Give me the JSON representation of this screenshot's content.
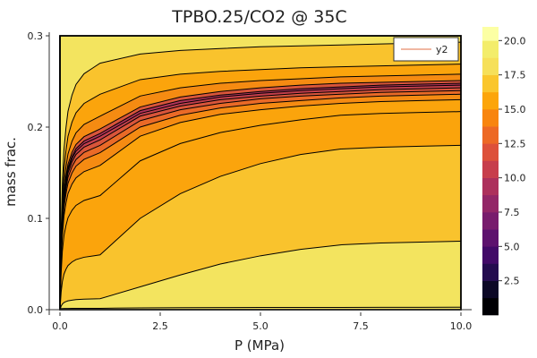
{
  "chart_data": {
    "type": "contour",
    "title": "TPBO.25/CO2 @ 35C",
    "xlabel": "P (MPa)",
    "ylabel": "mass frac.",
    "xlim": [
      0,
      10
    ],
    "ylim": [
      0,
      0.3
    ],
    "x_ticks": [
      {
        "value": 0,
        "label": "0.0"
      },
      {
        "value": 2.5,
        "label": "2.5"
      },
      {
        "value": 5,
        "label": "5.0"
      },
      {
        "value": 7.5,
        "label": "7.5"
      },
      {
        "value": 10,
        "label": "10.0"
      }
    ],
    "y_ticks": [
      {
        "value": 0,
        "label": "0.0"
      },
      {
        "value": 0.1,
        "label": "0.1"
      },
      {
        "value": 0.2,
        "label": "0.2"
      },
      {
        "value": 0.3,
        "label": "0.3"
      }
    ],
    "grid": true,
    "legend": {
      "placement": "top-right",
      "entries": [
        {
          "name": "y2",
          "color": "#e26f46"
        }
      ]
    },
    "colorbar": {
      "range": [
        0,
        21
      ],
      "levels": [
        0,
        1.25,
        2.5,
        3.75,
        5,
        6.25,
        7.5,
        8.75,
        10,
        11.25,
        12.5,
        13.75,
        15,
        16.25,
        17.5,
        18.75,
        20,
        21
      ],
      "ticks": [
        {
          "value": 2.5,
          "label": "2.5"
        },
        {
          "value": 5,
          "label": "5.0"
        },
        {
          "value": 7.5,
          "label": "7.5"
        },
        {
          "value": 10,
          "label": "10.0"
        },
        {
          "value": 12.5,
          "label": "12.5"
        },
        {
          "value": 15,
          "label": "15.0"
        },
        {
          "value": 17.5,
          "label": "17.5"
        },
        {
          "value": 20,
          "label": "20.0"
        }
      ],
      "colors": [
        "#000004",
        "#0c0826",
        "#240c4f",
        "#420a68",
        "#5d126e",
        "#781c6d",
        "#932667",
        "#ad305c",
        "#c73e4c",
        "#dd513a",
        "#ed6925",
        "#f8850f",
        "#fca50a",
        "#fac62d",
        "#f6e05a",
        "#f3ed6b",
        "#fcffa4"
      ]
    },
    "contour_x": [
      0,
      1,
      2,
      3,
      4,
      5,
      6,
      7,
      8,
      9,
      10
    ],
    "contour_curves": [
      {
        "y": [
          0.001,
          0.0015,
          0.002,
          0.0022,
          0.0023,
          0.0024,
          0.0025,
          0.0025,
          0.0026,
          0.0026,
          0.0027
        ]
      },
      {
        "y": [
          0,
          0.012,
          0.025,
          0.038,
          0.05,
          0.059,
          0.066,
          0.071,
          0.073,
          0.074,
          0.075
        ]
      },
      {
        "y": [
          0,
          0.06,
          0.1,
          0.127,
          0.146,
          0.16,
          0.17,
          0.176,
          0.178,
          0.179,
          0.18
        ]
      },
      {
        "y": [
          0,
          0.125,
          0.163,
          0.182,
          0.194,
          0.202,
          0.208,
          0.213,
          0.215,
          0.216,
          0.217
        ]
      },
      {
        "y": [
          0,
          0.158,
          0.19,
          0.205,
          0.214,
          0.219,
          0.223,
          0.226,
          0.228,
          0.229,
          0.23
        ]
      },
      {
        "y": [
          0,
          0.172,
          0.2,
          0.213,
          0.221,
          0.226,
          0.229,
          0.232,
          0.234,
          0.235,
          0.236
        ]
      },
      {
        "y": [
          0,
          0.18,
          0.207,
          0.219,
          0.226,
          0.231,
          0.234,
          0.236,
          0.238,
          0.239,
          0.24
        ]
      },
      {
        "y": [
          0,
          0.186,
          0.212,
          0.223,
          0.23,
          0.234,
          0.237,
          0.239,
          0.241,
          0.242,
          0.243
        ]
      },
      {
        "y": [
          0,
          0.19,
          0.215,
          0.226,
          0.233,
          0.237,
          0.24,
          0.242,
          0.244,
          0.245,
          0.246
        ]
      },
      {
        "y": [
          0,
          0.193,
          0.218,
          0.229,
          0.235,
          0.239,
          0.242,
          0.244,
          0.246,
          0.247,
          0.248
        ]
      },
      {
        "y": [
          0,
          0.198,
          0.222,
          0.233,
          0.239,
          0.243,
          0.246,
          0.248,
          0.249,
          0.25,
          0.251
        ]
      },
      {
        "y": [
          0,
          0.212,
          0.234,
          0.243,
          0.248,
          0.251,
          0.253,
          0.255,
          0.256,
          0.257,
          0.258
        ]
      },
      {
        "y": [
          0,
          0.236,
          0.252,
          0.258,
          0.261,
          0.263,
          0.265,
          0.266,
          0.267,
          0.268,
          0.269
        ]
      },
      {
        "y": [
          0,
          0.27,
          0.28,
          0.284,
          0.286,
          0.288,
          0.289,
          0.29,
          0.291,
          0.292,
          0.293
        ]
      }
    ],
    "band_colors": [
      "#f3e45f",
      "#f3e45f",
      "#f9c32d",
      "#fba40c",
      "#fba40c",
      "#f58b12",
      "#ea6a27",
      "#d9553a",
      "#c43f4c",
      "#b1335a",
      "#d9553a",
      "#f58b12",
      "#fba40c",
      "#f9c32d",
      "#f3e45f"
    ],
    "steep_edge": {
      "p": [
        0,
        0.03,
        0.06,
        0.1,
        0.15,
        0.2,
        0.3,
        0.4,
        0.6,
        0.8,
        1.0
      ],
      "y": [
        0,
        0.06,
        0.1,
        0.13,
        0.15,
        0.165,
        0.18,
        0.19,
        0.2,
        0.205,
        0.21
      ]
    }
  }
}
